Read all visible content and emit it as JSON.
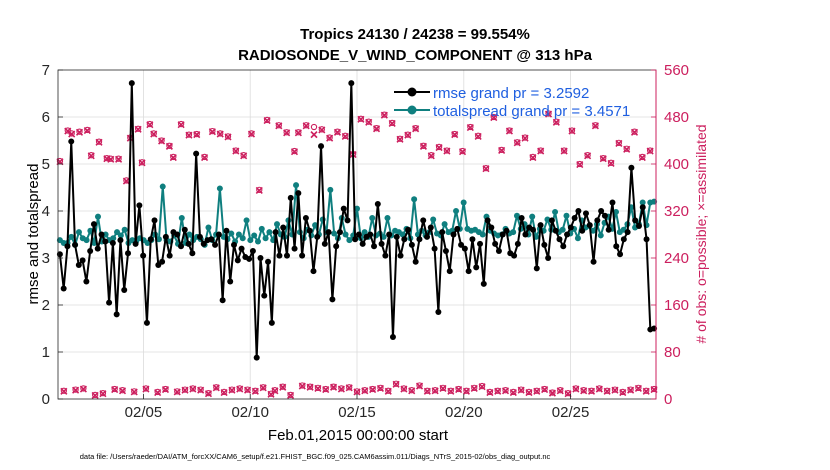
{
  "chart_data": {
    "type": "line",
    "title_line1": "Tropics 24130 / 24238 = 99.554%",
    "title_line2": "RADIOSONDE_V_WIND_COMPONENT @ 313 hPa",
    "xlabel": "Feb.01,2015 00:00:00 start",
    "ylabel_left": "rmse and totalspread",
    "ylabel_right": "# of obs: o=possible; ×=assimilated",
    "footer": "data file: /Users/raeder/DAI/ATM_forcXX/CAM6_setup/f.e21.FHIST_BGC.f09_025.CAM6assim.011/Diags_NTrS_2015-02/obs_diag_output.nc",
    "x_ticks": [
      {
        "label": "02/05",
        "day": 5
      },
      {
        "label": "02/10",
        "day": 10
      },
      {
        "label": "02/15",
        "day": 15
      },
      {
        "label": "02/20",
        "day": 20
      },
      {
        "label": "02/25",
        "day": 25
      }
    ],
    "xlim": [
      1,
      29
    ],
    "ylim_left": [
      0,
      7
    ],
    "ylim_right": [
      0,
      560
    ],
    "y_ticks_left": [
      "0",
      "1",
      "2",
      "3",
      "4",
      "5",
      "6",
      "7"
    ],
    "y_ticks_right": [
      "0",
      "80",
      "160",
      "240",
      "320",
      "400",
      "480",
      "560"
    ],
    "legend": [
      {
        "label": "rmse grand pr = 3.2592",
        "color": "#000000"
      },
      {
        "label": "totalspread grand pr = 3.4571",
        "color": "#0f7f7f"
      }
    ],
    "colors": {
      "rmse": "#000000",
      "spread": "#0f7f7f",
      "obs": "#cc1f5e"
    },
    "series": [
      {
        "name": "rmse",
        "values": [
          3.08,
          2.35,
          3.25,
          5.48,
          3.28,
          2.85,
          2.95,
          2.5,
          3.15,
          3.72,
          3.2,
          3.5,
          3.35,
          2.05,
          3.32,
          1.8,
          3.38,
          2.32,
          3.1,
          6.72,
          3.3,
          4.12,
          3.05,
          1.62,
          3.4,
          3.8,
          2.85,
          2.92,
          3.45,
          3.05,
          3.55,
          3.5,
          3.25,
          3.6,
          3.3,
          3.1,
          5.22,
          3.45,
          3.3,
          3.38,
          3.4,
          3.28,
          3.5,
          2.1,
          3.58,
          2.5,
          3.28,
          2.95,
          3.2,
          3.02,
          2.98,
          3.15,
          0.88,
          3.0,
          2.2,
          2.92,
          1.62,
          3.55,
          3.05,
          3.65,
          3.05,
          4.28,
          3.2,
          4.38,
          3.05,
          3.85,
          3.58,
          2.72,
          3.45,
          5.38,
          3.3,
          3.55,
          2.12,
          3.25,
          3.55,
          4.05,
          3.8,
          6.72,
          3.4,
          3.5,
          3.3,
          3.45,
          3.5,
          3.25,
          4.15,
          3.3,
          3.05,
          3.5,
          1.32,
          3.45,
          3.05,
          3.4,
          3.6,
          3.28,
          2.92,
          3.4,
          3.8,
          3.45,
          3.65,
          3.2,
          1.85,
          3.55,
          3.15,
          2.72,
          3.5,
          3.62,
          3.28,
          3.2,
          2.72,
          3.4,
          2.8,
          3.3,
          2.45,
          3.8,
          3.65,
          3.3,
          3.15,
          3.5,
          3.58,
          3.1,
          3.05,
          3.3,
          3.85,
          3.5,
          3.65,
          3.6,
          2.78,
          3.7,
          3.28,
          3.0,
          3.8,
          3.58,
          3.4,
          3.25,
          3.5,
          3.65,
          3.85,
          4.0,
          3.58,
          3.95,
          3.7,
          2.92,
          3.8,
          4.0,
          3.9,
          3.6,
          4.18,
          3.25,
          3.08,
          3.4,
          3.55,
          4.92,
          3.8,
          3.68,
          4.08,
          3.4,
          1.48,
          1.5
        ]
      },
      {
        "name": "totalspread",
        "values": [
          3.38,
          3.32,
          3.32,
          3.45,
          3.28,
          3.55,
          3.42,
          3.38,
          3.58,
          3.32,
          3.88,
          3.35,
          3.5,
          3.38,
          3.42,
          3.55,
          3.48,
          3.6,
          3.32,
          3.38,
          3.35,
          3.42,
          3.38,
          3.32,
          3.38,
          3.5,
          3.4,
          4.52,
          3.38,
          3.35,
          3.48,
          3.3,
          3.85,
          3.32,
          3.5,
          3.38,
          3.45,
          3.4,
          3.28,
          3.65,
          3.38,
          3.5,
          4.48,
          3.45,
          3.4,
          3.52,
          3.35,
          3.5,
          3.42,
          3.8,
          3.38,
          3.48,
          3.35,
          3.62,
          3.42,
          3.55,
          3.38,
          3.72,
          3.5,
          3.45,
          3.8,
          3.5,
          4.55,
          3.55,
          3.42,
          3.6,
          3.48,
          3.7,
          3.5,
          3.82,
          3.55,
          4.45,
          3.52,
          3.42,
          3.85,
          3.5,
          3.38,
          3.48,
          4.05,
          3.42,
          3.55,
          3.45,
          3.85,
          3.48,
          3.52,
          3.45,
          3.85,
          3.48,
          3.58,
          3.55,
          3.5,
          3.62,
          3.42,
          4.25,
          3.5,
          3.58,
          3.48,
          3.55,
          3.82,
          3.52,
          3.48,
          3.72,
          3.55,
          3.58,
          4.0,
          3.62,
          4.18,
          3.62,
          3.58,
          3.6,
          3.55,
          3.5,
          3.88,
          3.58,
          3.52,
          3.48,
          3.5,
          3.62,
          3.52,
          3.55,
          3.9,
          3.62,
          3.72,
          3.5,
          3.88,
          3.45,
          3.62,
          3.58,
          3.82,
          3.6,
          3.98,
          3.55,
          3.6,
          3.9,
          3.52,
          3.62,
          3.42,
          3.8,
          3.65,
          3.68,
          3.58,
          3.72,
          3.48,
          3.75,
          3.88,
          3.62,
          3.98,
          3.55,
          3.6,
          3.72,
          4.08,
          3.65,
          3.72,
          4.18,
          3.7,
          4.18,
          4.2
        ]
      },
      {
        "name": "obs_possible",
        "axis": "right",
        "values": [
          405,
          14,
          457,
          452,
          16,
          455,
          18,
          458,
          415,
          7,
          438,
          10,
          410,
          409,
          17,
          409,
          15,
          372,
          445,
          13,
          460,
          403,
          18,
          468,
          452,
          12,
          440,
          17,
          431,
          412,
          13,
          468,
          16,
          450,
          18,
          451,
          16,
          412,
          10,
          456,
          20,
          452,
          12,
          447,
          16,
          423,
          18,
          415,
          16,
          452,
          14,
          356,
          20,
          475,
          9,
          15,
          466,
          21,
          454,
          7,
          422,
          454,
          23,
          466,
          21,
          463,
          19,
          459,
          17,
          445,
          21,
          455,
          18,
          448,
          20,
          417,
          13,
          477,
          15,
          472,
          17,
          461,
          19,
          484,
          14,
          470,
          26,
          443,
          18,
          450,
          15,
          461,
          23,
          431,
          14,
          415,
          15,
          429,
          19,
          423,
          14,
          451,
          17,
          422,
          14,
          463,
          19,
          448,
          22,
          393,
          12,
          480,
          14,
          424,
          15,
          457,
          12,
          437,
          16,
          445,
          12,
          412,
          14,
          423,
          17,
          486,
          11,
          472,
          15,
          423,
          10,
          457,
          18,
          400,
          15,
          415,
          14,
          466,
          18,
          410,
          14,
          402,
          16,
          436,
          12,
          426,
          16,
          455,
          19,
          412,
          14,
          423,
          17
        ]
      },
      {
        "name": "obs_assimilated",
        "axis": "right",
        "values": [
          404,
          13,
          456,
          451,
          15,
          454,
          17,
          457,
          414,
          6,
          437,
          9,
          409,
          408,
          16,
          408,
          14,
          371,
          444,
          12,
          459,
          402,
          17,
          467,
          451,
          11,
          439,
          16,
          430,
          411,
          12,
          467,
          15,
          449,
          17,
          450,
          15,
          411,
          9,
          455,
          19,
          451,
          11,
          446,
          15,
          422,
          17,
          414,
          15,
          451,
          13,
          355,
          19,
          474,
          8,
          14,
          465,
          20,
          453,
          6,
          421,
          453,
          22,
          465,
          20,
          450,
          18,
          458,
          16,
          444,
          20,
          454,
          17,
          447,
          19,
          416,
          12,
          476,
          14,
          471,
          16,
          460,
          18,
          483,
          13,
          469,
          25,
          442,
          17,
          449,
          14,
          460,
          22,
          430,
          13,
          414,
          14,
          428,
          18,
          422,
          13,
          450,
          16,
          421,
          13,
          462,
          18,
          447,
          21,
          392,
          11,
          479,
          13,
          423,
          14,
          456,
          11,
          436,
          15,
          444,
          11,
          411,
          13,
          422,
          16,
          485,
          10,
          471,
          14,
          422,
          9,
          456,
          17,
          399,
          14,
          414,
          13,
          465,
          17,
          409,
          13,
          401,
          15,
          435,
          11,
          425,
          15,
          454,
          18,
          411,
          13,
          422,
          16
        ]
      }
    ]
  }
}
